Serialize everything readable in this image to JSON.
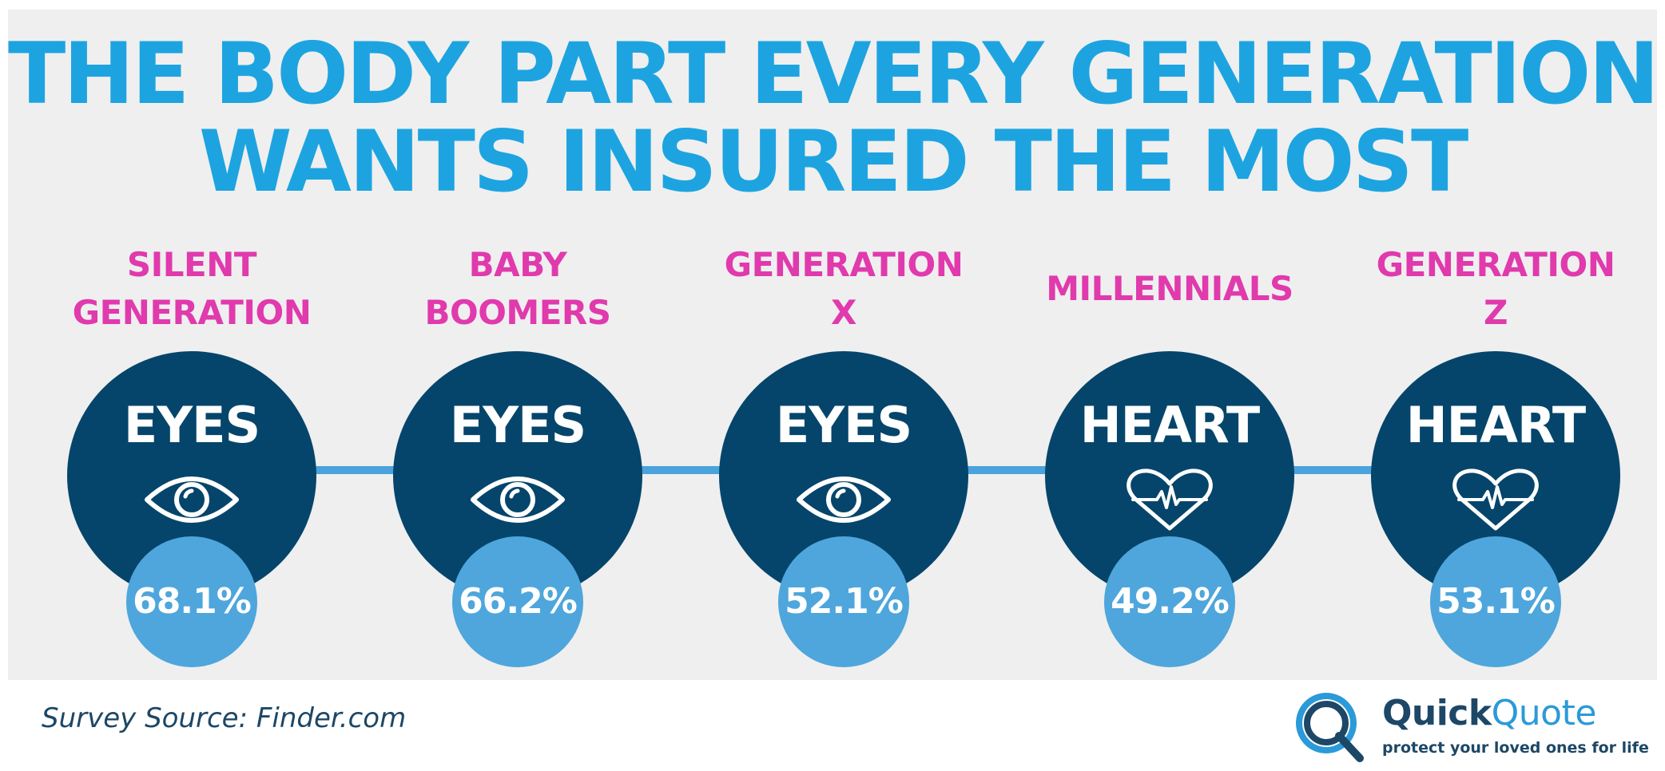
{
  "title": {
    "line1": "THE BODY PART EVERY GENERATION",
    "line2": "WANTS INSURED THE MOST"
  },
  "generations": [
    {
      "name_line1": "SILENT",
      "name_line2": "GENERATION",
      "body_part": "EYES",
      "icon": "eye-icon",
      "percent": "68.1%",
      "value": 68.1
    },
    {
      "name_line1": "BABY",
      "name_line2": "BOOMERS",
      "body_part": "EYES",
      "icon": "eye-icon",
      "percent": "66.2%",
      "value": 66.2
    },
    {
      "name_line1": "GENERATION",
      "name_line2": "X",
      "body_part": "EYES",
      "icon": "eye-icon",
      "percent": "52.1%",
      "value": 52.1
    },
    {
      "name_line1": "MILLENNIALS",
      "name_line2": "",
      "body_part": "HEART",
      "icon": "heart-pulse-icon",
      "percent": "49.2%",
      "value": 49.2
    },
    {
      "name_line1": "GENERATION",
      "name_line2": "Z",
      "body_part": "HEART",
      "icon": "heart-pulse-icon",
      "percent": "53.1%",
      "value": 53.1
    }
  ],
  "source": "Survey Source: Finder.com",
  "logo": {
    "brand_part1": "Quick",
    "brand_part2": "Quote",
    "tagline": "protect your loved ones for life",
    "icon": "magnifier-q-icon"
  },
  "colors": {
    "title": "#1da4e0",
    "generation_label": "#e03aad",
    "big_circle": "#05456b",
    "percent_circle": "#4ea6dc",
    "connector": "#4aa3dc",
    "panel": "#efefef"
  }
}
